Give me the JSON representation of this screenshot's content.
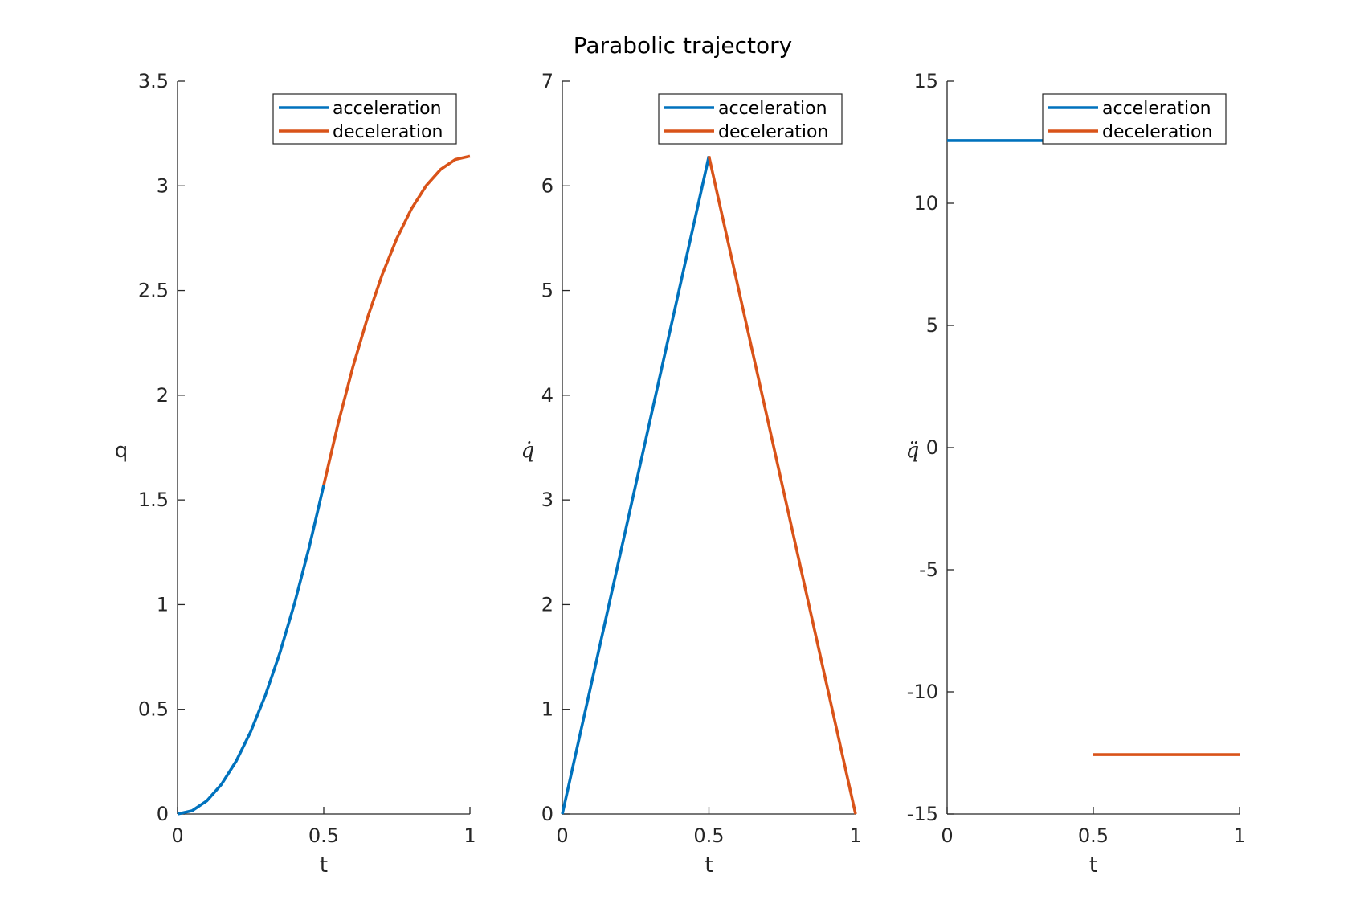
{
  "figure_title": "Parabolic trajectory",
  "colors": {
    "acceleration": "#0072BD",
    "deceleration": "#D95319",
    "axis": "#262626"
  },
  "chart_data": [
    {
      "type": "line",
      "xlabel": "t",
      "ylabel": "q",
      "ylabel_style": "plain",
      "xlim": [
        0,
        1
      ],
      "ylim": [
        0,
        3.5
      ],
      "xticks": [
        0,
        0.5,
        1
      ],
      "xtick_labels": [
        "0",
        "0.5",
        "1"
      ],
      "yticks": [
        0,
        0.5,
        1,
        1.5,
        2,
        2.5,
        3,
        3.5
      ],
      "ytick_labels": [
        "0",
        "0.5",
        "1",
        "1.5",
        "2",
        "2.5",
        "3",
        "3.5"
      ],
      "legend_position": "top-right",
      "series": [
        {
          "name": "acceleration",
          "color": "#0072BD",
          "x": [
            0,
            0.05,
            0.1,
            0.15,
            0.2,
            0.25,
            0.3,
            0.35,
            0.4,
            0.45,
            0.5
          ],
          "y": [
            0,
            0.0157,
            0.0628,
            0.1414,
            0.2513,
            0.3927,
            0.5655,
            0.7697,
            1.0053,
            1.2723,
            1.5708
          ]
        },
        {
          "name": "deceleration",
          "color": "#D95319",
          "x": [
            0.5,
            0.55,
            0.6,
            0.65,
            0.7,
            0.75,
            0.8,
            0.85,
            0.9,
            0.95,
            1
          ],
          "y": [
            1.5708,
            1.8693,
            2.1363,
            2.3719,
            2.5761,
            2.7489,
            2.8903,
            3.0002,
            3.0788,
            3.1259,
            3.1416
          ]
        }
      ]
    },
    {
      "type": "line",
      "xlabel": "t",
      "ylabel": "q̇",
      "ylabel_style": "math",
      "xlim": [
        0,
        1
      ],
      "ylim": [
        0,
        7
      ],
      "xticks": [
        0,
        0.5,
        1
      ],
      "xtick_labels": [
        "0",
        "0.5",
        "1"
      ],
      "yticks": [
        0,
        1,
        2,
        3,
        4,
        5,
        6,
        7
      ],
      "ytick_labels": [
        "0",
        "1",
        "2",
        "3",
        "4",
        "5",
        "6",
        "7"
      ],
      "legend_position": "top-right",
      "series": [
        {
          "name": "acceleration",
          "color": "#0072BD",
          "x": [
            0,
            0.5
          ],
          "y": [
            0,
            6.2832
          ]
        },
        {
          "name": "deceleration",
          "color": "#D95319",
          "x": [
            0.5,
            1
          ],
          "y": [
            6.2832,
            0
          ]
        }
      ]
    },
    {
      "type": "line",
      "xlabel": "t",
      "ylabel": "q̈",
      "ylabel_style": "math",
      "xlim": [
        0,
        1
      ],
      "ylim": [
        -15,
        15
      ],
      "xticks": [
        0,
        0.5,
        1
      ],
      "xtick_labels": [
        "0",
        "0.5",
        "1"
      ],
      "yticks": [
        -15,
        -10,
        -5,
        0,
        5,
        10,
        15
      ],
      "ytick_labels": [
        "-15",
        "-10",
        "-5",
        "0",
        "5",
        "10",
        "15"
      ],
      "legend_position": "top-right",
      "series": [
        {
          "name": "acceleration",
          "color": "#0072BD",
          "x": [
            0,
            0.5
          ],
          "y": [
            12.5664,
            12.5664
          ]
        },
        {
          "name": "deceleration",
          "color": "#D95319",
          "x": [
            0.5,
            1
          ],
          "y": [
            -12.5664,
            -12.5664
          ]
        }
      ]
    }
  ]
}
